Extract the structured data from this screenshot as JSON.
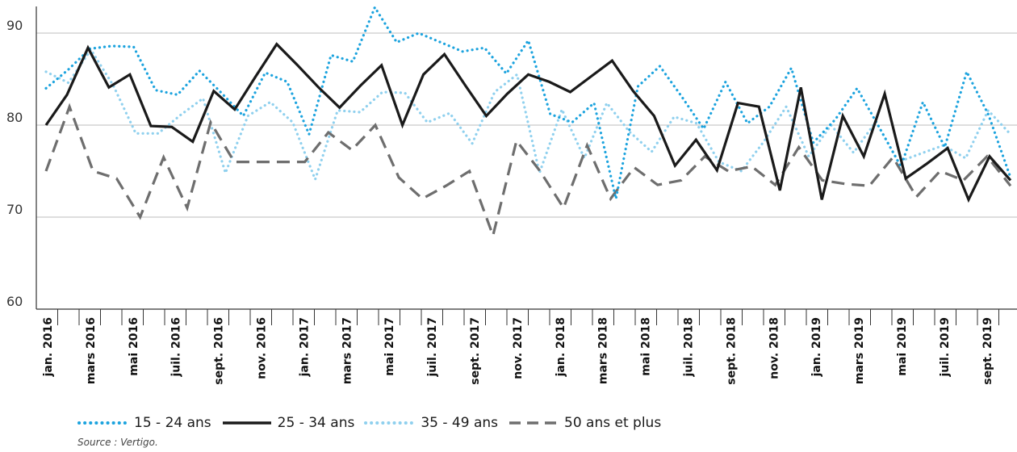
{
  "chart_data": {
    "type": "line",
    "title": "",
    "xlabel": "",
    "ylabel": "",
    "ylim": [
      60,
      93
    ],
    "yticks": [
      60,
      70,
      80,
      90
    ],
    "grid": true,
    "legend_position": "bottom-left",
    "x_labels": [
      "jan. 2016",
      "mars 2016",
      "mai 2016",
      "juil. 2016",
      "sept. 2016",
      "nov. 2016",
      "jan. 2017",
      "mars 2017",
      "mai 2017",
      "juil. 2017",
      "sept. 2017",
      "nov. 2017",
      "jan. 2018",
      "mars 2018",
      "mai 2018",
      "juil. 2018",
      "sept. 2018",
      "nov. 2018",
      "jan. 2019",
      "mars 2019",
      "mai 2019",
      "juil. 2019",
      "sept. 2019"
    ],
    "series": [
      {
        "name": "15 - 24 ans",
        "color": "#1ca3de",
        "style": "dotted",
        "values": [
          84,
          86,
          88.3,
          88.6,
          88.5,
          83.8,
          83.3,
          85.9,
          83.5,
          81,
          85.7,
          84.7,
          79,
          87.6,
          86.9,
          92.8,
          89,
          90,
          89,
          88,
          88.4,
          85.6,
          89.2,
          81.2,
          80.3,
          82.4,
          72,
          84.2,
          86.4,
          83.1,
          79.6,
          84.7,
          80.2,
          82,
          86.2,
          78.1,
          80.6,
          84,
          79.8,
          75.5,
          82.5,
          77.6,
          85.8,
          81.1,
          74.3
        ]
      },
      {
        "name": "25 - 34 ans",
        "color": "#1a1a1a",
        "style": "solid",
        "values": [
          80,
          83.3,
          88.4,
          84.1,
          85.5,
          79.9,
          79.8,
          78.2,
          83.7,
          81.7,
          85.3,
          88.8,
          86.5,
          84.1,
          81.9,
          84.3,
          86.5,
          80,
          85.5,
          87.7,
          84.3,
          81,
          83.4,
          85.5,
          84.7,
          83.6,
          85.3,
          87,
          83.7,
          81,
          75.6,
          78.4,
          75.1,
          82.4,
          82,
          72.9,
          84.1,
          71.9,
          81,
          76.6,
          83.4,
          74.2,
          75.8,
          77.5,
          71.9,
          76.6,
          74
        ]
      },
      {
        "name": "35 - 49 ans",
        "color": "#8fd0ee",
        "style": "dotted",
        "values": [
          85.8,
          84.6,
          88.2,
          84.3,
          79.1,
          79.1,
          81.1,
          82.9,
          74.8,
          81,
          82.5,
          80.3,
          74.1,
          81.6,
          81.4,
          83.6,
          83.5,
          80.3,
          81.3,
          78,
          83.6,
          85.5,
          74.8,
          81.7,
          76.4,
          82.4,
          79.3,
          77.1,
          80.9,
          80.2,
          76,
          75,
          78.2,
          82,
          76.6,
          80,
          77,
          80.4,
          76,
          76.9,
          77.8,
          76.4,
          81.6,
          79
        ]
      },
      {
        "name": "50 ans et plus",
        "color": "#6e6e6e",
        "style": "dashed",
        "values": [
          75,
          82,
          75,
          74.2,
          70,
          76.5,
          71,
          80.3,
          76,
          76,
          76,
          76,
          79.2,
          77.3,
          80,
          74.3,
          72,
          73.4,
          75,
          68,
          78.3,
          75,
          71,
          77.8,
          72,
          75.4,
          73.5,
          74,
          76.6,
          75,
          75.5,
          73.5,
          77.6,
          74,
          73.6,
          73.4,
          76.5,
          72.2,
          75,
          74,
          76.6,
          73.4
        ]
      }
    ],
    "source_note": "Source : Vertigo."
  }
}
